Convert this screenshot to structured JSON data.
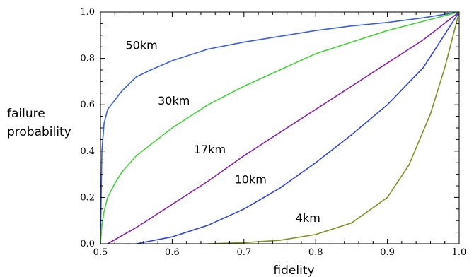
{
  "chart_data": {
    "type": "line",
    "title": "",
    "xlabel": "fidelity",
    "ylabel_lines": [
      "failure",
      "probability"
    ],
    "xlim": [
      0.5,
      1.0
    ],
    "ylim": [
      0.0,
      1.0
    ],
    "x_ticks": [
      "0.5",
      "0.6",
      "0.7",
      "0.8",
      "0.9",
      "1.0"
    ],
    "y_ticks": [
      "0.0",
      "0.2",
      "0.4",
      "0.6",
      "0.8",
      "1.0"
    ],
    "grid": false,
    "series": [
      {
        "name": "50km",
        "color": "#3a5ee0",
        "points": [
          [
            0.5,
            0.0
          ],
          [
            0.5005,
            0.1
          ],
          [
            0.502,
            0.4
          ],
          [
            0.505,
            0.52
          ],
          [
            0.51,
            0.58
          ],
          [
            0.52,
            0.62
          ],
          [
            0.53,
            0.66
          ],
          [
            0.54,
            0.69
          ],
          [
            0.55,
            0.72
          ],
          [
            0.57,
            0.75
          ],
          [
            0.6,
            0.79
          ],
          [
            0.65,
            0.84
          ],
          [
            0.7,
            0.87
          ],
          [
            0.75,
            0.895
          ],
          [
            0.8,
            0.92
          ],
          [
            0.85,
            0.94
          ],
          [
            0.9,
            0.955
          ],
          [
            0.95,
            0.975
          ],
          [
            1.0,
            1.0
          ]
        ]
      },
      {
        "name": "30km",
        "color": "#47d13c",
        "points": [
          [
            0.5,
            0.0
          ],
          [
            0.502,
            0.08
          ],
          [
            0.505,
            0.14
          ],
          [
            0.51,
            0.2
          ],
          [
            0.52,
            0.26
          ],
          [
            0.53,
            0.31
          ],
          [
            0.55,
            0.38
          ],
          [
            0.6,
            0.5
          ],
          [
            0.65,
            0.6
          ],
          [
            0.7,
            0.68
          ],
          [
            0.75,
            0.75
          ],
          [
            0.8,
            0.82
          ],
          [
            0.85,
            0.87
          ],
          [
            0.9,
            0.92
          ],
          [
            0.95,
            0.96
          ],
          [
            1.0,
            1.0
          ]
        ]
      },
      {
        "name": "17km",
        "color": "#8a1fa8",
        "points": [
          [
            0.51,
            0.0
          ],
          [
            0.55,
            0.07
          ],
          [
            0.6,
            0.17
          ],
          [
            0.65,
            0.27
          ],
          [
            0.7,
            0.38
          ],
          [
            0.75,
            0.48
          ],
          [
            0.8,
            0.58
          ],
          [
            0.85,
            0.68
          ],
          [
            0.9,
            0.78
          ],
          [
            0.95,
            0.88
          ],
          [
            1.0,
            1.0
          ]
        ]
      },
      {
        "name": "10km",
        "color": "#2f44d8",
        "points": [
          [
            0.55,
            0.0
          ],
          [
            0.6,
            0.03
          ],
          [
            0.65,
            0.08
          ],
          [
            0.7,
            0.15
          ],
          [
            0.75,
            0.24
          ],
          [
            0.8,
            0.35
          ],
          [
            0.85,
            0.47
          ],
          [
            0.9,
            0.6
          ],
          [
            0.95,
            0.76
          ],
          [
            1.0,
            1.0
          ]
        ]
      },
      {
        "name": "4km",
        "color": "#7a9423",
        "points": [
          [
            0.65,
            0.0
          ],
          [
            0.7,
            0.005
          ],
          [
            0.75,
            0.015
          ],
          [
            0.8,
            0.04
          ],
          [
            0.85,
            0.09
          ],
          [
            0.9,
            0.2
          ],
          [
            0.93,
            0.34
          ],
          [
            0.96,
            0.56
          ],
          [
            0.98,
            0.76
          ],
          [
            1.0,
            1.0
          ]
        ]
      }
    ],
    "annotations": [
      {
        "text": "50km",
        "x": 0.535,
        "y": 0.84
      },
      {
        "text": "30km",
        "x": 0.58,
        "y": 0.6
      },
      {
        "text": "17km",
        "x": 0.63,
        "y": 0.39
      },
      {
        "text": "10km",
        "x": 0.687,
        "y": 0.26
      },
      {
        "text": "4km",
        "x": 0.772,
        "y": 0.095
      }
    ]
  }
}
